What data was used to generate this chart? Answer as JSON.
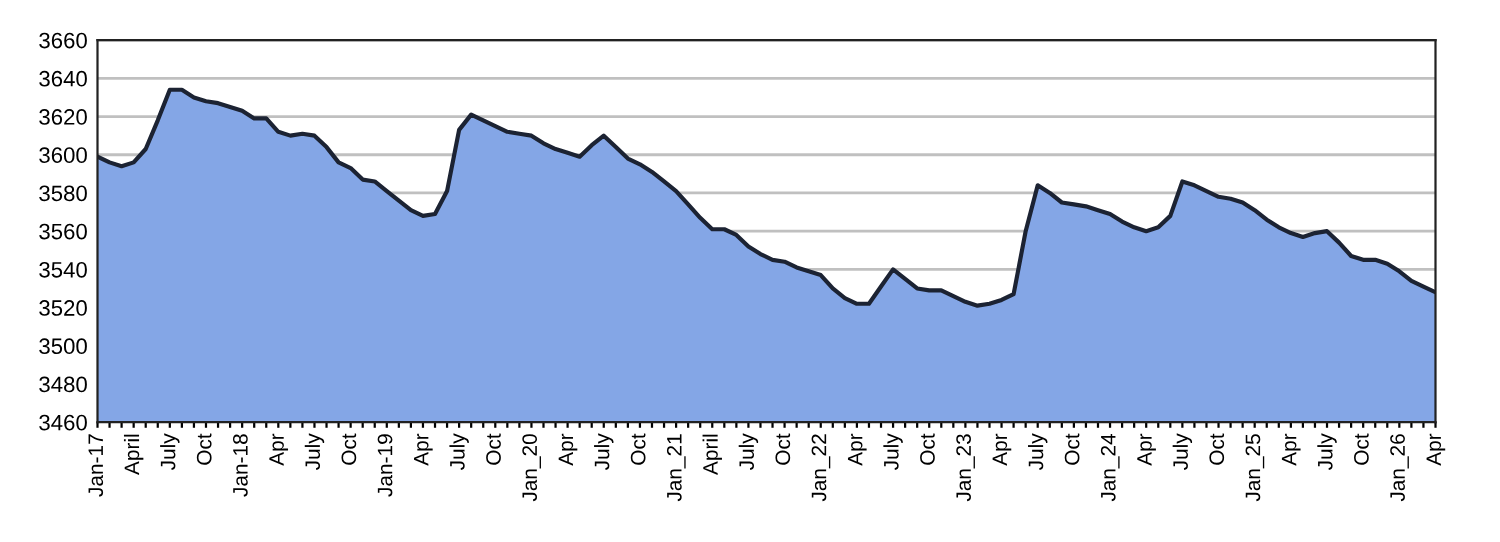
{
  "chart_data": {
    "type": "area",
    "categories": [
      "Jan-17",
      null,
      null,
      "April",
      null,
      null,
      "July",
      null,
      null,
      "Oct",
      null,
      null,
      "Jan-18",
      null,
      null,
      "Apr",
      null,
      null,
      "July",
      null,
      null,
      "Oct",
      null,
      null,
      "Jan-19",
      null,
      null,
      "Apr",
      null,
      null,
      "July",
      null,
      null,
      "Oct",
      null,
      null,
      "Jan_20",
      null,
      null,
      "Apr",
      null,
      null,
      "July",
      null,
      null,
      "Oct",
      null,
      null,
      "Jan_21",
      null,
      null,
      "April",
      null,
      null,
      "July",
      null,
      null,
      "Oct",
      null,
      null,
      "Jan_22",
      null,
      null,
      "Apr",
      null,
      null,
      "July",
      null,
      null,
      "Oct",
      null,
      null,
      "Jan_23",
      null,
      null,
      "Apr",
      null,
      null,
      "July",
      null,
      null,
      "Oct",
      null,
      null,
      "Jan_24",
      null,
      null,
      "Apr",
      null,
      null,
      "July",
      null,
      null,
      "Oct",
      null,
      null,
      "Jan_25",
      null,
      null,
      "Apr",
      null,
      null,
      "July",
      null,
      null,
      "Oct",
      null,
      null,
      "Jan_26",
      null,
      null,
      "Apr"
    ],
    "series": [
      {
        "color": "#84a6e6",
        "values": [
          3599,
          3596,
          3594,
          3596,
          3603,
          3618,
          3634,
          3634,
          3630,
          3628,
          3627,
          3625,
          3623,
          3619,
          3619,
          3612,
          3610,
          3611,
          3610,
          3604,
          3596,
          3593,
          3587,
          3586,
          3581,
          3576,
          3571,
          3568,
          3569,
          3581,
          3613,
          3621,
          3618,
          3615,
          3612,
          3611,
          3610,
          3606,
          3603,
          3601,
          3599,
          3605,
          3610,
          3604,
          3598,
          3595,
          3591,
          3586,
          3581,
          3574,
          3567,
          3561,
          3561,
          3558,
          3552,
          3548,
          3545,
          3544,
          3541,
          3539,
          3537,
          3530,
          3525,
          3522,
          3522,
          3531,
          3540,
          3535,
          3530,
          3529,
          3529,
          3526,
          3523,
          3521,
          3522,
          3524,
          3527,
          3560,
          3584,
          3580,
          3575,
          3574,
          3573,
          3571,
          3569,
          3565,
          3562,
          3560,
          3562,
          3568,
          3586,
          3584,
          3581,
          3578,
          3577,
          3575,
          3571,
          3566,
          3562,
          3559,
          3557,
          3559,
          3560,
          3554,
          3547,
          3545,
          3545,
          3543,
          3539,
          3534,
          3531,
          3528
        ]
      }
    ],
    "ylim": [
      3460,
      3660
    ],
    "yticks": [
      3460,
      3480,
      3500,
      3520,
      3540,
      3560,
      3580,
      3600,
      3620,
      3640,
      3660
    ],
    "grid": "y"
  }
}
